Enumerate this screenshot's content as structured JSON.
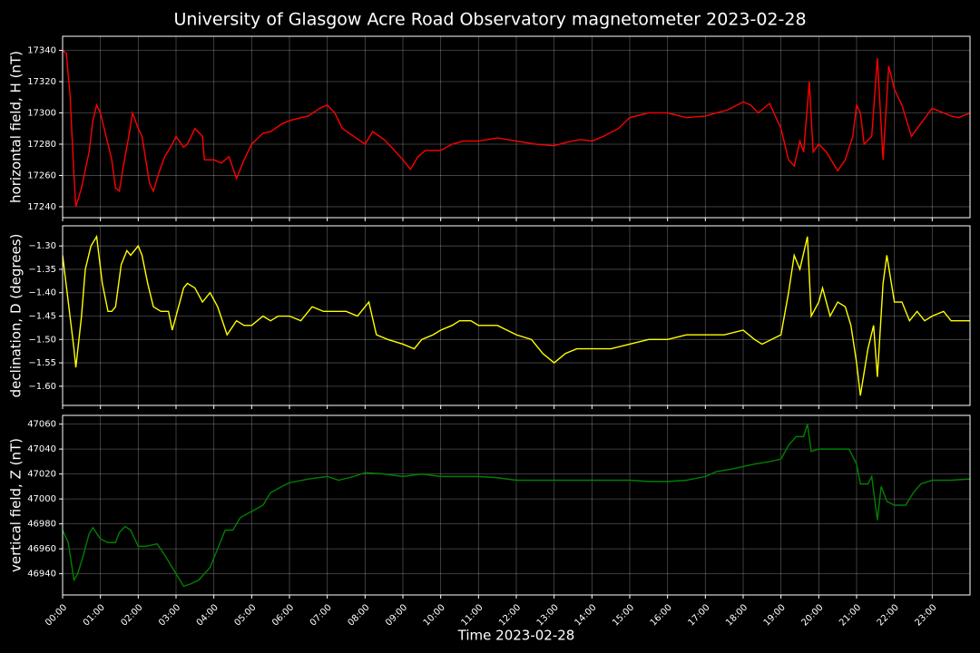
{
  "chart_data": [
    {
      "type": "line",
      "title": "University of Glasgow Acre Road Observatory magnetometer 2023-02-28",
      "ylabel": "horizontal field, H (nT)",
      "color": "#ff0000",
      "grid": true,
      "xlim": [
        0,
        24
      ],
      "ylim": [
        17233,
        17349
      ],
      "yticks": [
        17240,
        17260,
        17280,
        17300,
        17320,
        17340
      ],
      "x": [
        0,
        0.1,
        0.2,
        0.3,
        0.35,
        0.5,
        0.7,
        0.8,
        0.9,
        1.0,
        1.1,
        1.3,
        1.4,
        1.5,
        1.6,
        1.75,
        1.85,
        2.0,
        2.1,
        2.2,
        2.3,
        2.4,
        2.55,
        2.7,
        2.9,
        3.0,
        3.2,
        3.3,
        3.5,
        3.7,
        3.75,
        4.0,
        4.2,
        4.4,
        4.6,
        4.8,
        5.0,
        5.3,
        5.5,
        5.8,
        6.0,
        6.3,
        6.5,
        6.8,
        7.0,
        7.2,
        7.4,
        7.7,
        8.0,
        8.2,
        8.5,
        8.7,
        9.0,
        9.2,
        9.4,
        9.6,
        9.8,
        10.0,
        10.3,
        10.6,
        11,
        11.5,
        12,
        12.5,
        13,
        13.3,
        13.7,
        14,
        14.3,
        14.7,
        15,
        15.5,
        16,
        16.5,
        17,
        17.3,
        17.6,
        18,
        18.2,
        18.4,
        18.7,
        19.0,
        19.2,
        19.35,
        19.5,
        19.6,
        19.75,
        19.85,
        20.0,
        20.2,
        20.5,
        20.7,
        20.9,
        21.0,
        21.1,
        21.2,
        21.4,
        21.55,
        21.7,
        21.85,
        22.0,
        22.2,
        22.45,
        22.6,
        23.0,
        23.5,
        23.7,
        24
      ],
      "values": [
        17340,
        17338,
        17310,
        17260,
        17240,
        17252,
        17275,
        17295,
        17305,
        17300,
        17290,
        17270,
        17252,
        17250,
        17265,
        17285,
        17300,
        17290,
        17285,
        17270,
        17255,
        17250,
        17262,
        17272,
        17280,
        17285,
        17278,
        17280,
        17290,
        17285,
        17270,
        17270,
        17268,
        17272,
        17258,
        17270,
        17280,
        17287,
        17288,
        17293,
        17295,
        17297,
        17298,
        17303,
        17305,
        17300,
        17290,
        17285,
        17280,
        17288,
        17283,
        17278,
        17270,
        17264,
        17272,
        17276,
        17276,
        17276,
        17280,
        17282,
        17282,
        17284,
        17282,
        17280,
        17279,
        17281,
        17283,
        17282,
        17285,
        17290,
        17297,
        17300,
        17300,
        17297,
        17298,
        17300,
        17302,
        17307,
        17305,
        17300,
        17306,
        17290,
        17270,
        17266,
        17282,
        17275,
        17320,
        17275,
        17280,
        17275,
        17263,
        17270,
        17285,
        17305,
        17300,
        17280,
        17285,
        17335,
        17270,
        17330,
        17315,
        17305,
        17285,
        17290,
        17303,
        17298,
        17297,
        17300
      ]
    },
    {
      "type": "line",
      "ylabel": "declination, D (degrees)",
      "color": "#ffff00",
      "grid": true,
      "xlim": [
        0,
        24
      ],
      "ylim": [
        -1.641,
        -1.257
      ],
      "yticks": [
        {
          "value": -1.3,
          "label": "−1.30"
        },
        {
          "value": -1.35,
          "label": "−1.35"
        },
        {
          "value": -1.4,
          "label": "−1.40"
        },
        {
          "value": -1.45,
          "label": "−1.45"
        },
        {
          "value": -1.5,
          "label": "−1.50"
        },
        {
          "value": -1.55,
          "label": "−1.55"
        },
        {
          "value": -1.6,
          "label": "−1.60"
        }
      ],
      "x": [
        0,
        0.15,
        0.3,
        0.35,
        0.5,
        0.6,
        0.75,
        0.9,
        1.05,
        1.2,
        1.3,
        1.4,
        1.55,
        1.7,
        1.8,
        2.0,
        2.1,
        2.25,
        2.4,
        2.6,
        2.8,
        2.9,
        3.0,
        3.2,
        3.3,
        3.5,
        3.7,
        3.9,
        4.1,
        4.35,
        4.6,
        4.8,
        5.0,
        5.3,
        5.5,
        5.7,
        6.0,
        6.3,
        6.6,
        6.9,
        7.2,
        7.5,
        7.8,
        8.0,
        8.1,
        8.3,
        8.6,
        9.0,
        9.3,
        9.5,
        9.8,
        10.0,
        10.3,
        10.5,
        10.8,
        11.0,
        11.5,
        12.0,
        12.4,
        12.7,
        13.0,
        13.3,
        13.6,
        14.0,
        14.5,
        15.0,
        15.5,
        16,
        16.5,
        17,
        17.5,
        18,
        18.3,
        18.5,
        19.0,
        19.2,
        19.35,
        19.5,
        19.7,
        19.8,
        20.0,
        20.1,
        20.3,
        20.5,
        20.7,
        20.85,
        21.0,
        21.1,
        21.3,
        21.45,
        21.55,
        21.7,
        21.8,
        22.0,
        22.2,
        22.4,
        22.6,
        22.8,
        23.0,
        23.3,
        23.5,
        23.8,
        24
      ],
      "values": [
        -1.32,
        -1.42,
        -1.52,
        -1.56,
        -1.45,
        -1.35,
        -1.3,
        -1.28,
        -1.38,
        -1.44,
        -1.44,
        -1.43,
        -1.34,
        -1.31,
        -1.32,
        -1.3,
        -1.32,
        -1.38,
        -1.43,
        -1.44,
        -1.44,
        -1.48,
        -1.45,
        -1.39,
        -1.38,
        -1.39,
        -1.42,
        -1.4,
        -1.43,
        -1.49,
        -1.46,
        -1.47,
        -1.47,
        -1.45,
        -1.46,
        -1.45,
        -1.45,
        -1.46,
        -1.43,
        -1.44,
        -1.44,
        -1.44,
        -1.45,
        -1.43,
        -1.42,
        -1.49,
        -1.5,
        -1.51,
        -1.52,
        -1.5,
        -1.49,
        -1.48,
        -1.47,
        -1.46,
        -1.46,
        -1.47,
        -1.47,
        -1.49,
        -1.5,
        -1.53,
        -1.55,
        -1.53,
        -1.52,
        -1.52,
        -1.52,
        -1.51,
        -1.5,
        -1.5,
        -1.49,
        -1.49,
        -1.49,
        -1.48,
        -1.5,
        -1.51,
        -1.49,
        -1.4,
        -1.32,
        -1.35,
        -1.28,
        -1.45,
        -1.42,
        -1.39,
        -1.45,
        -1.42,
        -1.43,
        -1.47,
        -1.55,
        -1.62,
        -1.52,
        -1.47,
        -1.58,
        -1.38,
        -1.32,
        -1.42,
        -1.42,
        -1.46,
        -1.44,
        -1.46,
        -1.45,
        -1.44,
        -1.46,
        -1.46,
        -1.46
      ]
    },
    {
      "type": "line",
      "ylabel": "vertical field, Z (nT)",
      "xlabel": "Time 2023-02-28",
      "color": "#008000",
      "grid": true,
      "xlim": [
        0,
        24
      ],
      "ylim": [
        46923,
        47067
      ],
      "yticks": [
        46940,
        46960,
        46980,
        47000,
        47020,
        47040,
        47060
      ],
      "xticks": [
        {
          "value": 0,
          "label": "00:00"
        },
        {
          "value": 1,
          "label": "01:00"
        },
        {
          "value": 2,
          "label": "02:00"
        },
        {
          "value": 3,
          "label": "03:00"
        },
        {
          "value": 4,
          "label": "04:00"
        },
        {
          "value": 5,
          "label": "05:00"
        },
        {
          "value": 6,
          "label": "06:00"
        },
        {
          "value": 7,
          "label": "07:00"
        },
        {
          "value": 8,
          "label": "08:00"
        },
        {
          "value": 9,
          "label": "09:00"
        },
        {
          "value": 10,
          "label": "10:00"
        },
        {
          "value": 11,
          "label": "11:00"
        },
        {
          "value": 12,
          "label": "12:00"
        },
        {
          "value": 13,
          "label": "13:00"
        },
        {
          "value": 14,
          "label": "14:00"
        },
        {
          "value": 15,
          "label": "15:00"
        },
        {
          "value": 16,
          "label": "16:00"
        },
        {
          "value": 17,
          "label": "17:00"
        },
        {
          "value": 18,
          "label": "18:00"
        },
        {
          "value": 19,
          "label": "19:00"
        },
        {
          "value": 20,
          "label": "20:00"
        },
        {
          "value": 21,
          "label": "21:00"
        },
        {
          "value": 22,
          "label": "22:00"
        },
        {
          "value": 23,
          "label": "23:00"
        }
      ],
      "x": [
        0,
        0.15,
        0.3,
        0.4,
        0.55,
        0.7,
        0.8,
        1.0,
        1.2,
        1.4,
        1.5,
        1.65,
        1.8,
        2.0,
        2.2,
        2.5,
        2.7,
        2.9,
        3.1,
        3.2,
        3.4,
        3.6,
        3.9,
        4.1,
        4.3,
        4.5,
        4.7,
        5.0,
        5.3,
        5.5,
        5.8,
        6.0,
        6.5,
        7.0,
        7.3,
        7.7,
        8.0,
        8.5,
        9.0,
        9.5,
        10,
        10.5,
        11,
        11.5,
        12,
        12.5,
        13,
        13.5,
        14,
        14.5,
        15,
        15.5,
        16,
        16.5,
        17,
        17.3,
        17.7,
        18,
        18.3,
        18.7,
        19.0,
        19.2,
        19.4,
        19.6,
        19.7,
        19.8,
        20.0,
        20.2,
        20.5,
        20.8,
        21.0,
        21.1,
        21.3,
        21.4,
        21.55,
        21.65,
        21.8,
        22.0,
        22.3,
        22.5,
        22.7,
        23.0,
        23.5,
        24
      ],
      "values": [
        46975,
        46965,
        46935,
        46940,
        46955,
        46972,
        46977,
        46968,
        46965,
        46965,
        46973,
        46978,
        46975,
        46962,
        46962,
        46964,
        46955,
        46945,
        46935,
        46930,
        46932,
        46935,
        46945,
        46960,
        46975,
        46975,
        46985,
        46990,
        46995,
        47005,
        47010,
        47013,
        47016,
        47018,
        47015,
        47018,
        47021,
        47020,
        47018,
        47020,
        47018,
        47018,
        47018,
        47017,
        47015,
        47015,
        47015,
        47015,
        47015,
        47015,
        47015,
        47014,
        47014,
        47015,
        47018,
        47022,
        47024,
        47026,
        47028,
        47030,
        47032,
        47043,
        47050,
        47050,
        47060,
        47038,
        47040,
        47040,
        47040,
        47040,
        47028,
        47012,
        47012,
        47018,
        46983,
        47010,
        46998,
        46995,
        46995,
        47005,
        47012,
        47015,
        47015,
        47016
      ]
    }
  ]
}
